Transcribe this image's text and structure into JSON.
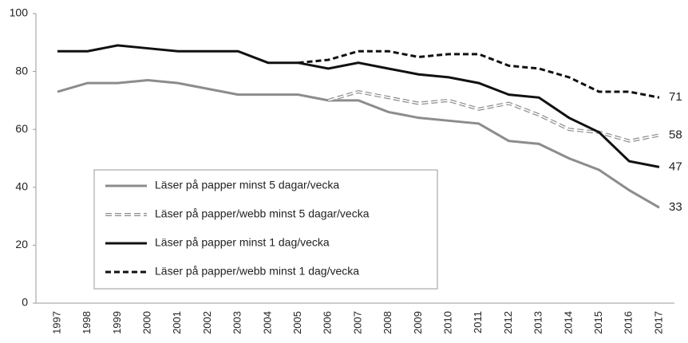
{
  "chart_data": {
    "type": "line",
    "categories": [
      "1997",
      "1998",
      "1999",
      "2000",
      "2001",
      "2002",
      "2003",
      "2004",
      "2005",
      "2006",
      "2007",
      "2008",
      "2009",
      "2010",
      "2011",
      "2012",
      "2013",
      "2014",
      "2015",
      "2016",
      "2017"
    ],
    "ylim": [
      0,
      100
    ],
    "yticks": [
      0,
      20,
      40,
      60,
      80,
      100
    ],
    "legend": "lower-left",
    "series": [
      {
        "name": "Läser på papper minst 5 dagar/vecka",
        "color": "#8c8c8c",
        "style": "solid",
        "values": [
          73,
          76,
          76,
          77,
          76,
          74,
          72,
          72,
          72,
          70,
          70,
          66,
          64,
          63,
          62,
          56,
          55,
          50,
          46,
          39,
          33
        ]
      },
      {
        "name": "Läser på papper/webb minst 5 dagar/vecka",
        "color": "#8c8c8c",
        "style": "hollow-dashed",
        "values": [
          null,
          null,
          null,
          null,
          null,
          null,
          null,
          null,
          null,
          70,
          73,
          71,
          69,
          70,
          67,
          69,
          65,
          60,
          59,
          56,
          58
        ]
      },
      {
        "name": "Läser på papper minst 1 dag/vecka",
        "color": "#111111",
        "style": "solid",
        "values": [
          87,
          87,
          89,
          88,
          87,
          87,
          87,
          83,
          83,
          81,
          83,
          81,
          79,
          78,
          76,
          72,
          71,
          64,
          59,
          49,
          47
        ]
      },
      {
        "name": "Läser på papper/webb minst 1 dag/vecka",
        "color": "#111111",
        "style": "dashed",
        "values": [
          null,
          null,
          null,
          null,
          null,
          null,
          null,
          null,
          83,
          84,
          87,
          87,
          85,
          86,
          86,
          82,
          81,
          78,
          73,
          73,
          71
        ]
      }
    ]
  }
}
